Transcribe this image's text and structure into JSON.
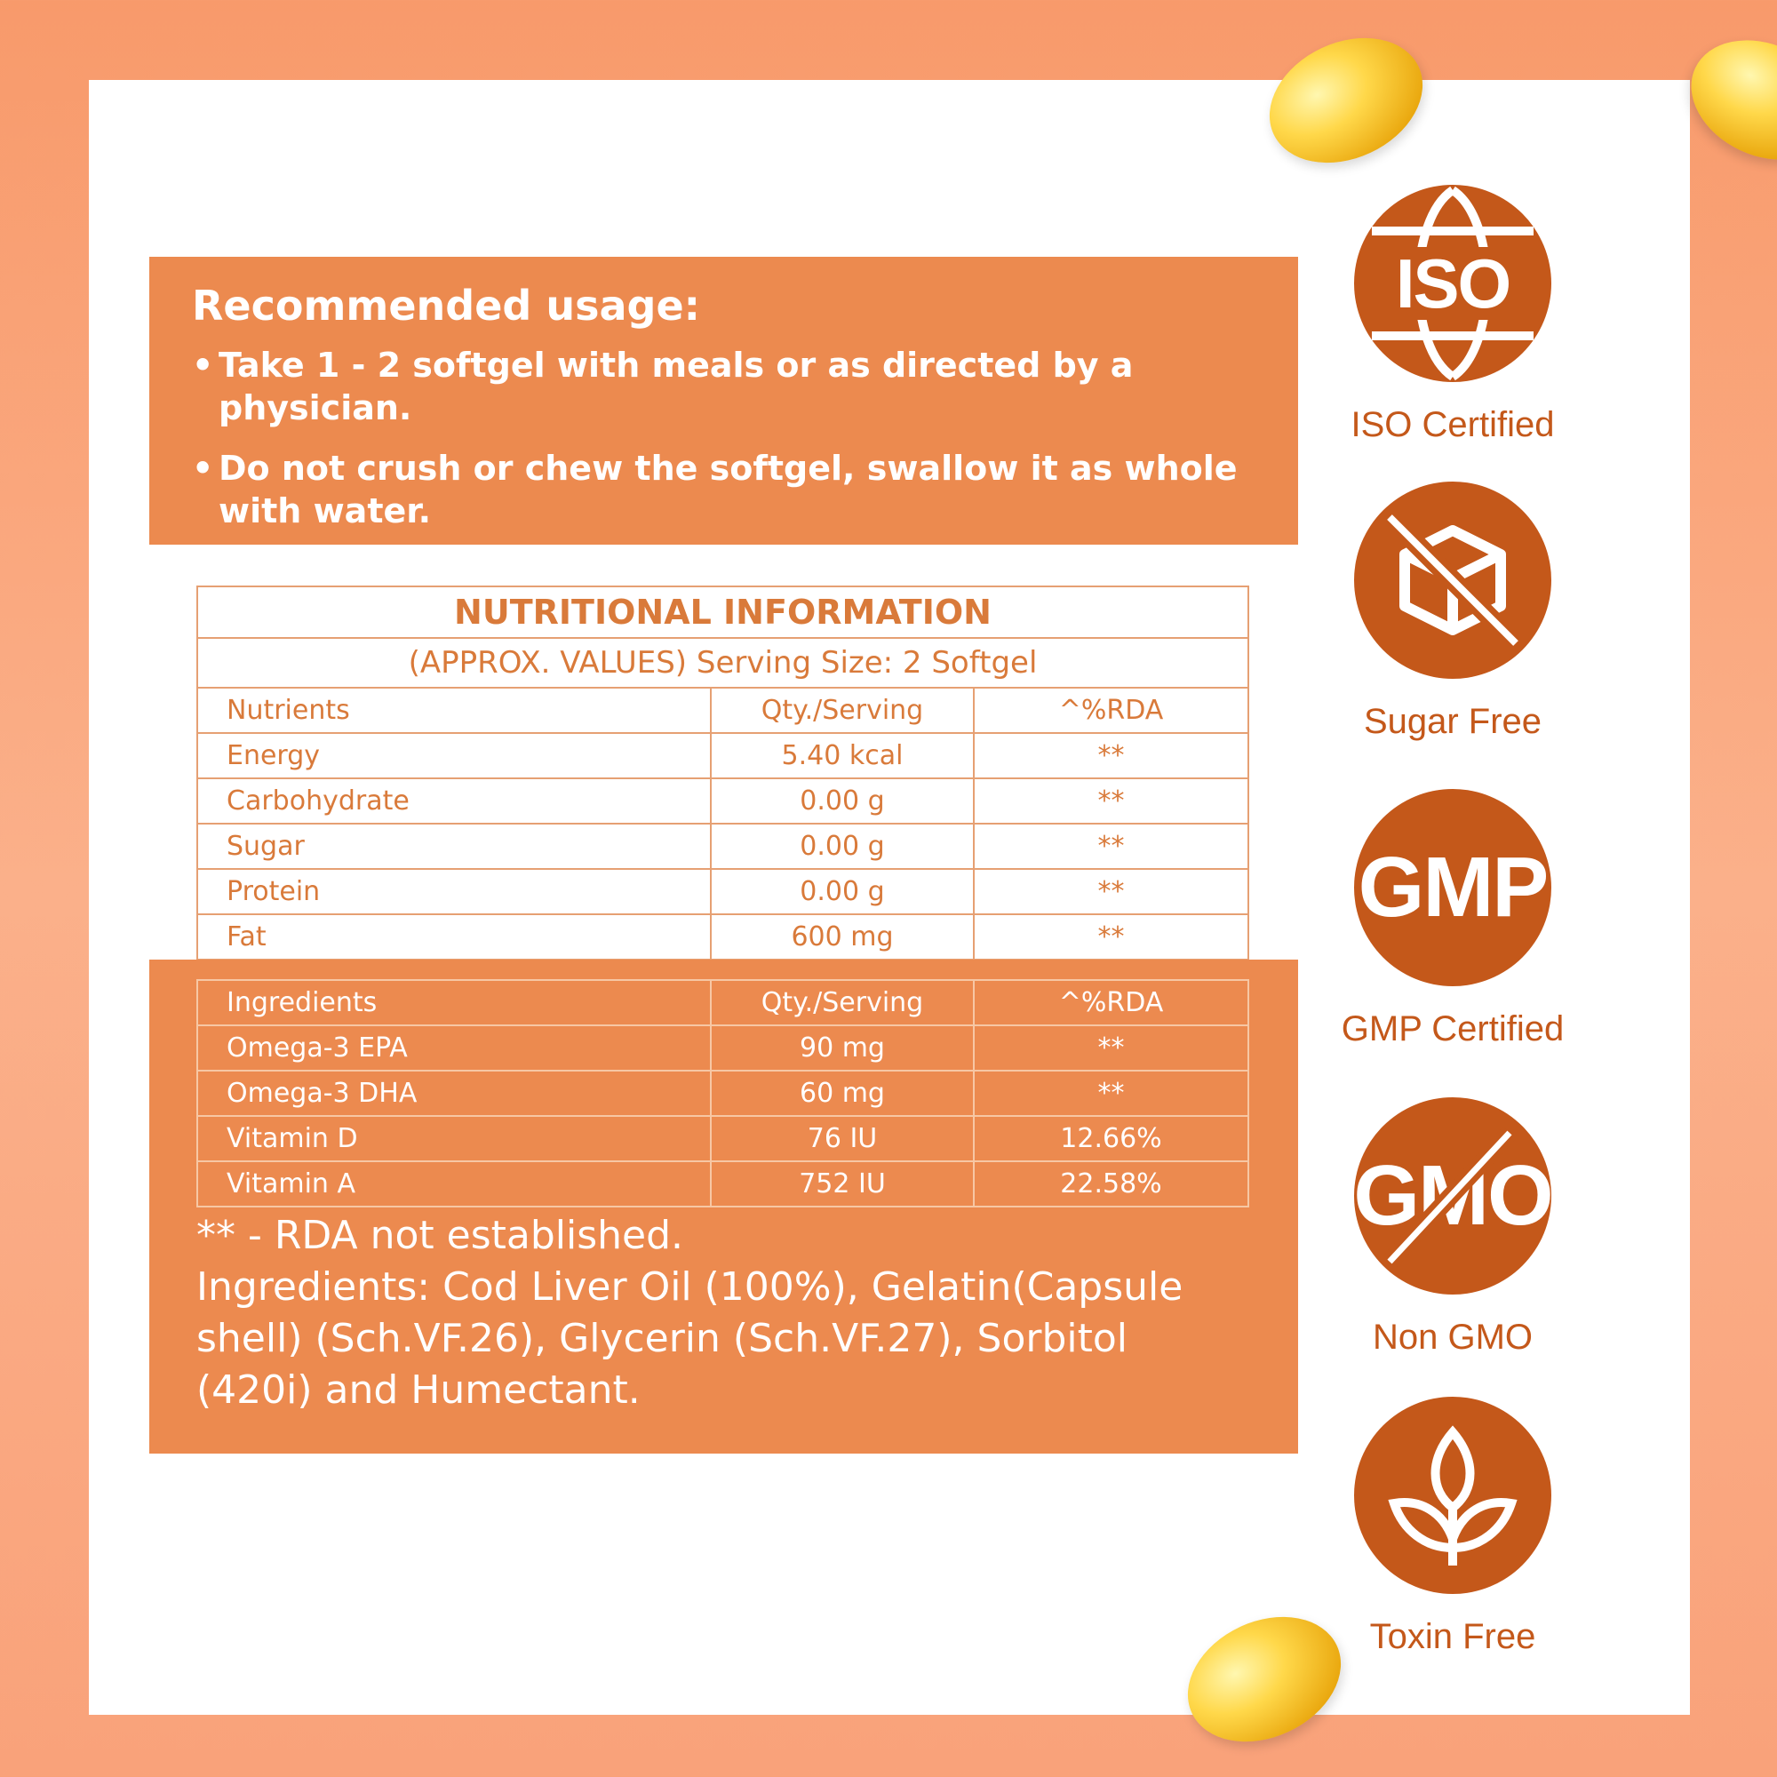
{
  "usage": {
    "title": "Recommended usage:",
    "items": [
      "Take 1 - 2 softgel with meals or as directed by a physician.",
      "Do  not crush or chew the softgel, swallow it as whole with water."
    ]
  },
  "nutrition": {
    "title": "NUTRITIONAL INFORMATION",
    "subtitle": "(APPROX. VALUES) Serving Size: 2 Softgel",
    "headers": [
      "Nutrients",
      "Qty./Serving",
      "^%RDA"
    ],
    "rows": [
      [
        "Energy",
        "5.40 kcal",
        "**"
      ],
      [
        "Carbohydrate",
        "0.00 g",
        "**"
      ],
      [
        "Sugar",
        "0.00 g",
        "**"
      ],
      [
        "Protein",
        "0.00 g",
        "**"
      ],
      [
        "Fat",
        "600 mg",
        "**"
      ]
    ]
  },
  "ingredients_table": {
    "headers": [
      "Ingredients",
      "Qty./Serving",
      "^%RDA"
    ],
    "rows": [
      [
        "Omega-3 EPA",
        "90 mg",
        "**"
      ],
      [
        "Omega-3 DHA",
        "60 mg",
        "**"
      ],
      [
        "Vitamin D",
        "76 IU",
        "12.66%"
      ],
      [
        "Vitamin A",
        "752 IU",
        "22.58%"
      ]
    ]
  },
  "notes": {
    "rda": "** - RDA not established.",
    "ingredients": "Ingredients: Cod Liver Oil (100%), Gelatin(Capsule shell) (Sch.VF.26), Glycerin (Sch.VF.27), Sorbitol (420i) and Humectant."
  },
  "badges": {
    "iso": {
      "text": "ISO",
      "label": "ISO Certified",
      "icon": "globe-icon"
    },
    "sugar": {
      "label": "Sugar Free",
      "icon": "no-sugar-cube-icon"
    },
    "gmp": {
      "text": "GMP",
      "label": "GMP Certified",
      "icon": "gmp-icon"
    },
    "gmo": {
      "text": "GMO",
      "label": "Non GMO",
      "icon": "no-gmo-icon"
    },
    "toxin": {
      "label": "Toxin Free",
      "icon": "leaf-icon"
    }
  },
  "colors": {
    "accent": "#ec8a4f",
    "badge": "#c4581a",
    "background": "#f89a6b"
  }
}
